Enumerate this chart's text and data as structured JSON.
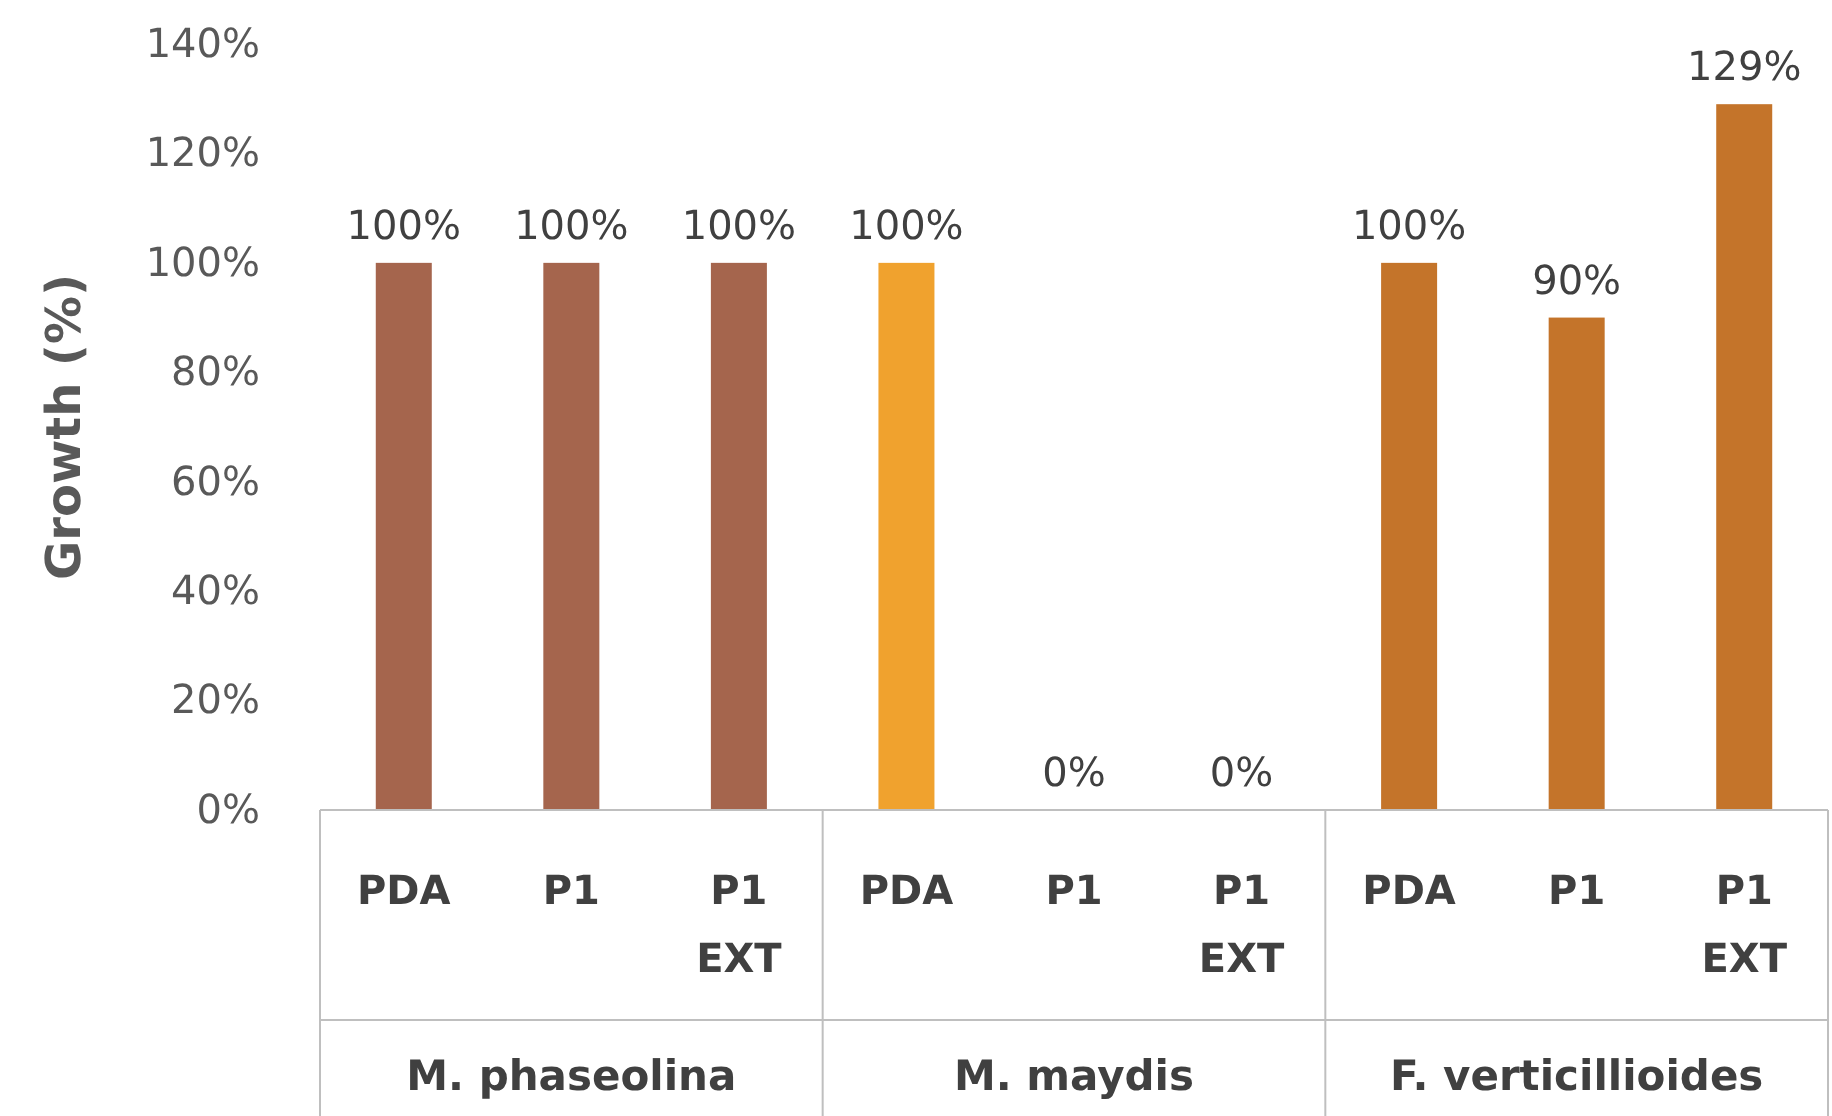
{
  "chart_data": {
    "type": "bar",
    "ylabel": "Growth (%)",
    "categories": [
      "PDA",
      "P1",
      "P1 EXT",
      "PDA",
      "P1",
      "P1 EXT",
      "PDA",
      "P1",
      "P1 EXT"
    ],
    "values": [
      100,
      100,
      100,
      100,
      0,
      0,
      100,
      90,
      129
    ],
    "colors": [
      "#a5654d",
      "#a5654d",
      "#a5654d",
      "#f0a22e",
      "#f0a22e",
      "#f0a22e",
      "#c4742a",
      "#c4742a",
      "#c4742a"
    ],
    "value_labels": [
      "100%",
      "100%",
      "100%",
      "100%",
      "0%",
      "0%",
      "100%",
      "90%",
      "129%"
    ],
    "ylim": [
      0,
      140
    ],
    "yticks": [
      {
        "value": 0,
        "label": "0%"
      },
      {
        "value": 20,
        "label": "20%"
      },
      {
        "value": 40,
        "label": "40%"
      },
      {
        "value": 60,
        "label": "60%"
      },
      {
        "value": 80,
        "label": "80%"
      },
      {
        "value": 100,
        "label": "100%"
      },
      {
        "value": 120,
        "label": "120%"
      },
      {
        "value": 140,
        "label": "140%"
      }
    ],
    "annotations": [
      "M. phaseolina",
      "M. maydis",
      "F. verticillioides"
    ],
    "grid": false
  }
}
